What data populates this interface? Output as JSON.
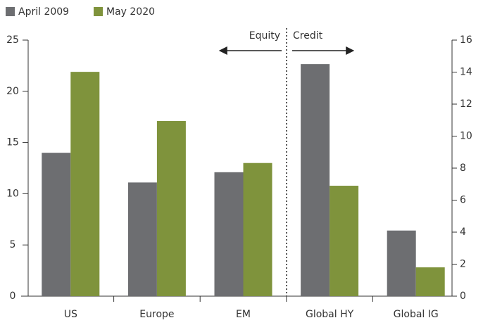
{
  "chart_data": {
    "type": "bar",
    "categories": [
      "US",
      "Europe",
      "EM",
      "Global HY",
      "Global IG"
    ],
    "category_axis": [
      "y",
      "y",
      "y",
      "y2",
      "y2"
    ],
    "series": [
      {
        "name": "April 2009",
        "color": "#6d6e71",
        "values": [
          14,
          11.1,
          12.1,
          14.5,
          4.1
        ]
      },
      {
        "name": "May 2020",
        "color": "#7f933c",
        "values": [
          21.9,
          17.1,
          13,
          6.9,
          1.8
        ]
      }
    ],
    "annotations": [
      "Equity",
      "Credit"
    ],
    "ylim": [
      0,
      25
    ],
    "yticks": [
      0,
      5,
      10,
      15,
      20,
      25
    ],
    "y2lim": [
      0,
      16
    ],
    "y2ticks": [
      0,
      2,
      4,
      6,
      8,
      10,
      12,
      14,
      16
    ],
    "legend": "top-left"
  }
}
